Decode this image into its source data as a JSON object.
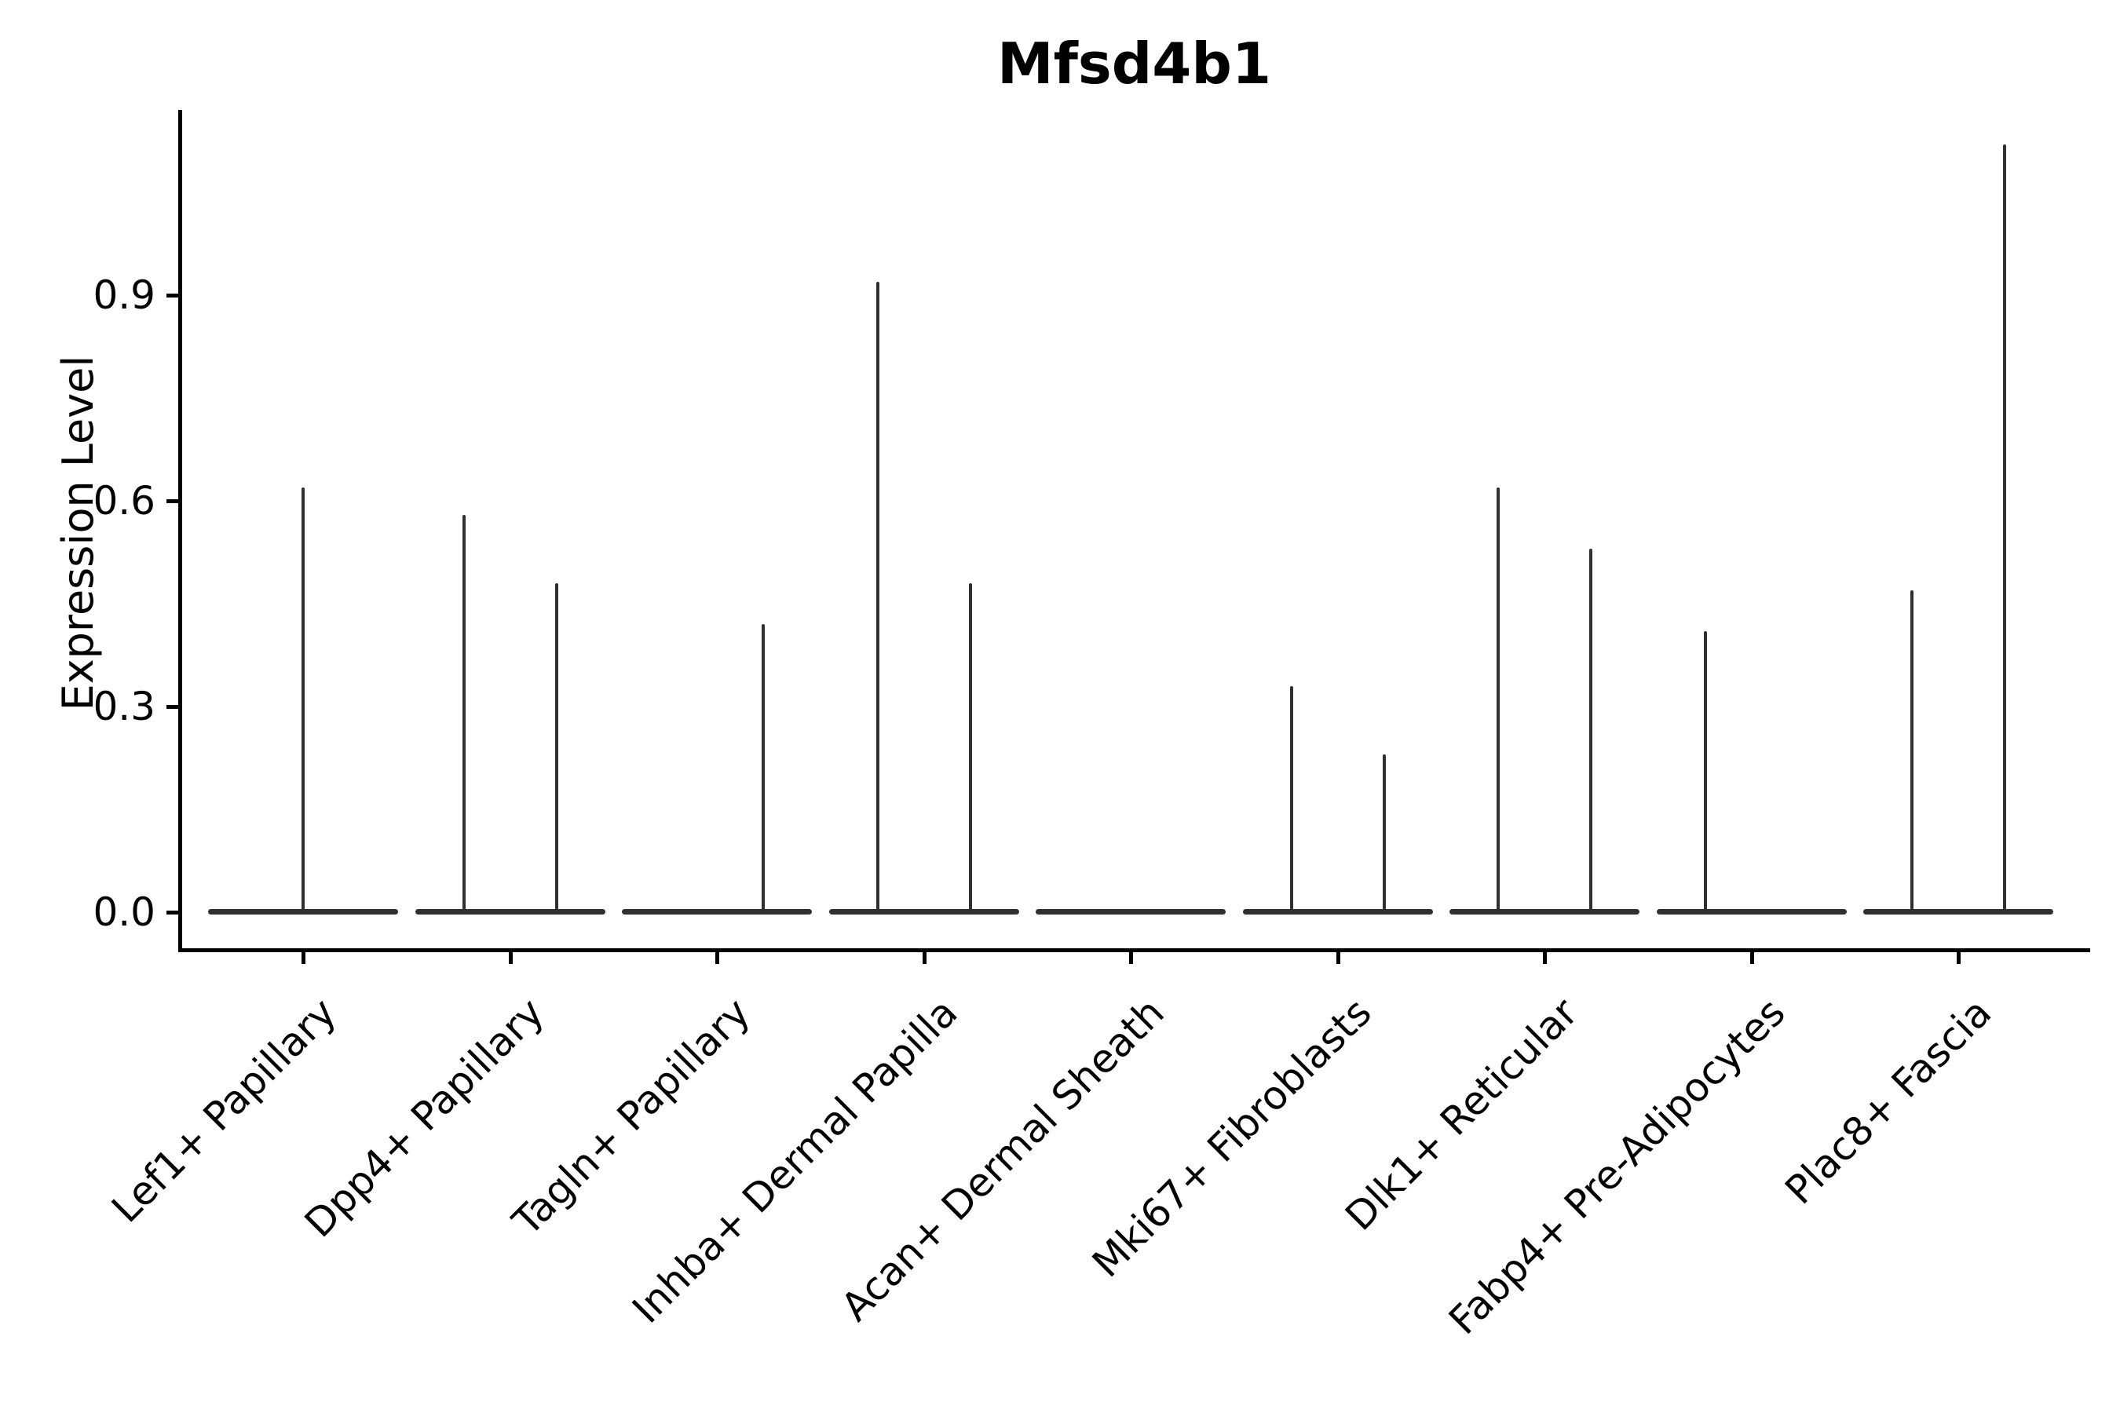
{
  "title": "Mfsd4b1",
  "chart_data": {
    "type": "violin",
    "title": "Mfsd4b1",
    "ylabel": "Expression Level",
    "xlabel": "",
    "ylim": [
      -0.05,
      1.17
    ],
    "grid": false,
    "legend": "none",
    "yticks": [
      {
        "value": 0.0,
        "label": "0.0"
      },
      {
        "value": 0.3,
        "label": "0.3"
      },
      {
        "value": 0.6,
        "label": "0.6"
      },
      {
        "value": 0.9,
        "label": "0.9"
      }
    ],
    "categories": [
      "Lef1+ Papillary",
      "Dpp4+ Papillary",
      "Tagln+ Papillary",
      "Inhba+ Dermal Papilla",
      "Acan+ Dermal Sheath",
      "Mki67+ Fibroblasts",
      "Dlk1+ Reticular",
      "Fabp4+ Pre-Adipocytes",
      "Plac8+ Fascia"
    ],
    "series": [
      {
        "category": "Lef1+ Papillary",
        "violins": [
          {
            "position": "center",
            "max_expression": 0.62
          }
        ]
      },
      {
        "category": "Dpp4+ Papillary",
        "violins": [
          {
            "position": "left",
            "max_expression": 0.58
          },
          {
            "position": "right",
            "max_expression": 0.48
          }
        ]
      },
      {
        "category": "Tagln+ Papillary",
        "violins": [
          {
            "position": "right",
            "max_expression": 0.42
          }
        ]
      },
      {
        "category": "Inhba+ Dermal Papilla",
        "violins": [
          {
            "position": "left",
            "max_expression": 0.92
          },
          {
            "position": "right",
            "max_expression": 0.48
          }
        ]
      },
      {
        "category": "Acan+ Dermal Sheath",
        "violins": []
      },
      {
        "category": "Mki67+ Fibroblasts",
        "violins": [
          {
            "position": "left",
            "max_expression": 0.33
          },
          {
            "position": "right",
            "max_expression": 0.23
          }
        ]
      },
      {
        "category": "Dlk1+ Reticular",
        "violins": [
          {
            "position": "left",
            "max_expression": 0.62
          },
          {
            "position": "right",
            "max_expression": 0.53
          }
        ]
      },
      {
        "category": "Fabp4+ Pre-Adipocytes",
        "violins": [
          {
            "position": "left",
            "max_expression": 0.41
          }
        ]
      },
      {
        "category": "Plac8+ Fascia",
        "violins": [
          {
            "position": "left",
            "max_expression": 0.47
          },
          {
            "position": "right",
            "max_expression": 1.12
          }
        ]
      }
    ],
    "colors": {
      "violin": "#303030",
      "axis": "#000000",
      "background": "#ffffff"
    }
  }
}
